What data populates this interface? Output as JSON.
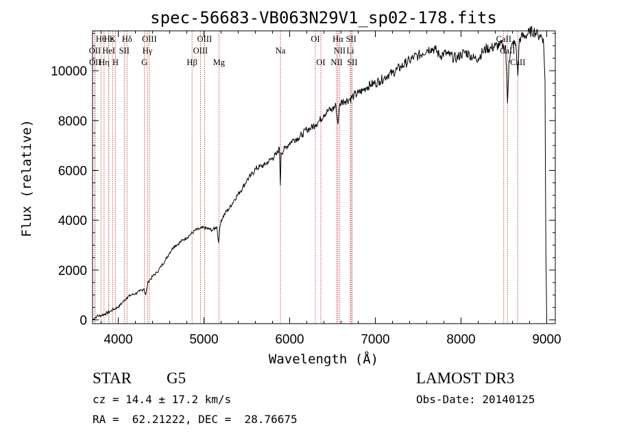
{
  "chart_data": {
    "type": "line",
    "title": "spec-56683-VB063N29V1_sp02-178.fits",
    "xlabel": "Wavelength (Å)",
    "ylabel": "Flux (relative)",
    "xlim": [
      3700,
      9100
    ],
    "ylim": [
      -150,
      11600
    ],
    "xticks": [
      4000,
      5000,
      6000,
      7000,
      8000,
      9000
    ],
    "yticks": [
      0,
      2000,
      4000,
      6000,
      8000,
      10000
    ],
    "series": [
      {
        "name": "flux",
        "x": [
          3700,
          3750,
          3800,
          3850,
          3900,
          3950,
          4000,
          4050,
          4100,
          4150,
          4200,
          4250,
          4300,
          4320,
          4350,
          4380,
          4400,
          4450,
          4500,
          4550,
          4600,
          4650,
          4700,
          4750,
          4800,
          4850,
          4900,
          4950,
          5000,
          5050,
          5100,
          5150,
          5170,
          5180,
          5200,
          5250,
          5300,
          5350,
          5400,
          5450,
          5500,
          5550,
          5600,
          5650,
          5700,
          5750,
          5800,
          5850,
          5880,
          5892,
          5900,
          5950,
          6000,
          6050,
          6100,
          6150,
          6200,
          6250,
          6300,
          6350,
          6400,
          6450,
          6500,
          6540,
          6563,
          6580,
          6600,
          6650,
          6700,
          6750,
          6800,
          6850,
          6900,
          6950,
          7000,
          7050,
          7100,
          7150,
          7200,
          7250,
          7300,
          7350,
          7400,
          7450,
          7500,
          7550,
          7600,
          7650,
          7700,
          7750,
          7800,
          7850,
          7900,
          7950,
          8000,
          8050,
          8100,
          8150,
          8200,
          8250,
          8300,
          8350,
          8400,
          8450,
          8480,
          8498,
          8520,
          8542,
          8560,
          8600,
          8640,
          8662,
          8680,
          8700,
          8750,
          8800,
          8850,
          8880,
          8900,
          8920,
          8960,
          8980,
          8990,
          9000
        ],
        "values": [
          0,
          150,
          180,
          250,
          330,
          430,
          520,
          700,
          900,
          1000,
          1050,
          1150,
          1250,
          1000,
          1550,
          1650,
          1750,
          1900,
          2150,
          2400,
          2700,
          2950,
          3050,
          3200,
          3300,
          3450,
          3600,
          3650,
          3700,
          3650,
          3600,
          3750,
          3100,
          3500,
          4000,
          4300,
          4500,
          4800,
          5050,
          5300,
          5600,
          5800,
          6050,
          6150,
          6200,
          6350,
          6500,
          6650,
          6900,
          5400,
          6700,
          6900,
          7100,
          7250,
          7300,
          7450,
          7650,
          7700,
          7850,
          8000,
          8250,
          8400,
          8450,
          8600,
          7850,
          8550,
          8750,
          8800,
          8850,
          9000,
          9100,
          9200,
          9350,
          9450,
          9500,
          9600,
          9700,
          9850,
          9900,
          10050,
          10150,
          10300,
          10400,
          10550,
          10600,
          10700,
          10850,
          10900,
          10850,
          10600,
          10700,
          10650,
          10550,
          10500,
          10650,
          10750,
          10650,
          10500,
          10500,
          10750,
          10900,
          10900,
          11000,
          11000,
          11050,
          10900,
          11000,
          8700,
          10400,
          11100,
          11050,
          9800,
          11250,
          11350,
          11400,
          11550,
          11600,
          11500,
          11400,
          11450,
          11300,
          9600,
          2600,
          0
        ]
      }
    ],
    "spectral_lines": {
      "row1": [
        {
          "label": "Hθ",
          "x": 3798
        },
        {
          "label": "Hε",
          "x": 3890
        },
        {
          "label": "K",
          "x": 3934
        },
        {
          "label": "Hδ",
          "x": 4102
        },
        {
          "label": "OIII",
          "x": 4363
        },
        {
          "label": "OIII",
          "x": 5007
        },
        {
          "label": "OI",
          "x": 6300
        },
        {
          "label": "Hα",
          "x": 6563
        },
        {
          "label": "SII",
          "x": 6717
        },
        {
          "label": "CaII",
          "x": 8498
        }
      ],
      "row2": [
        {
          "label": "OII",
          "x": 3727
        },
        {
          "label": "HeI",
          "x": 3889
        },
        {
          "label": "SII",
          "x": 4070
        },
        {
          "label": "Hγ",
          "x": 4340
        },
        {
          "label": "OIII",
          "x": 4959
        },
        {
          "label": "Na",
          "x": 5893
        },
        {
          "label": "NII",
          "x": 6583
        },
        {
          "label": "Li",
          "x": 6708
        },
        {
          "label": "CaII",
          "x": 8542
        }
      ],
      "row3": [
        {
          "label": "OII",
          "x": 3729
        },
        {
          "label": "Hη",
          "x": 3835
        },
        {
          "label": "H",
          "x": 3968
        },
        {
          "label": "G",
          "x": 4305
        },
        {
          "label": "Hβ",
          "x": 4861
        },
        {
          "label": "Mg",
          "x": 5175
        },
        {
          "label": "OI",
          "x": 6364
        },
        {
          "label": "NII",
          "x": 6548
        },
        {
          "label": "SII",
          "x": 6731
        },
        {
          "label": "CaII",
          "x": 8662
        }
      ]
    }
  },
  "info": {
    "class": "STAR",
    "subclass": "G5",
    "survey": "LAMOST DR3",
    "cz": "cz = 14.4 ± 17.2 km/s",
    "obs_date": "Obs-Date: 20140125",
    "coords": "RA =  62.21222, DEC =  28.76675"
  },
  "colors": {
    "line_marker": "#b22222",
    "spectrum": "#000000"
  }
}
